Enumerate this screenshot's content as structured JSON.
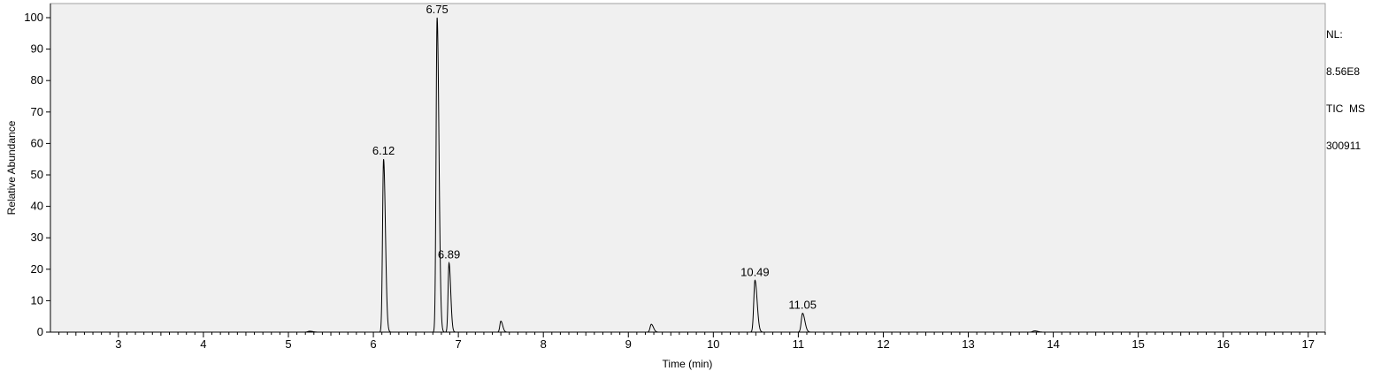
{
  "chart_data": {
    "type": "line",
    "xlabel": "Time (min)",
    "ylabel": "Relative Abundance",
    "xlim": [
      2.2,
      17.2
    ],
    "ylim": [
      0,
      100
    ],
    "x_ticks": [
      3,
      4,
      5,
      6,
      7,
      8,
      9,
      10,
      11,
      12,
      13,
      14,
      15,
      16,
      17
    ],
    "y_ticks": [
      0,
      10,
      20,
      30,
      40,
      50,
      60,
      70,
      80,
      90,
      100
    ],
    "grid": false,
    "peaks": [
      {
        "rt": 5.25,
        "height": 0.3,
        "width": 0.02
      },
      {
        "rt": 6.12,
        "height": 55,
        "width": 0.012,
        "label": "6.12"
      },
      {
        "rt": 6.75,
        "height": 100,
        "width": 0.012,
        "label": "6.75"
      },
      {
        "rt": 6.89,
        "height": 22,
        "width": 0.011,
        "label": "6.89"
      },
      {
        "rt": 7.5,
        "height": 3.5,
        "width": 0.012
      },
      {
        "rt": 9.27,
        "height": 2.5,
        "width": 0.014
      },
      {
        "rt": 10.49,
        "height": 16.5,
        "width": 0.014,
        "label": "10.49"
      },
      {
        "rt": 11.05,
        "height": 6,
        "width": 0.015,
        "label": "11.05"
      },
      {
        "rt": 13.78,
        "height": 0.4,
        "width": 0.02
      }
    ]
  },
  "info": {
    "nl_label": "NL:",
    "nl_value": "8.56E8",
    "scan_type": "TIC  MS",
    "file_name": "300911"
  }
}
